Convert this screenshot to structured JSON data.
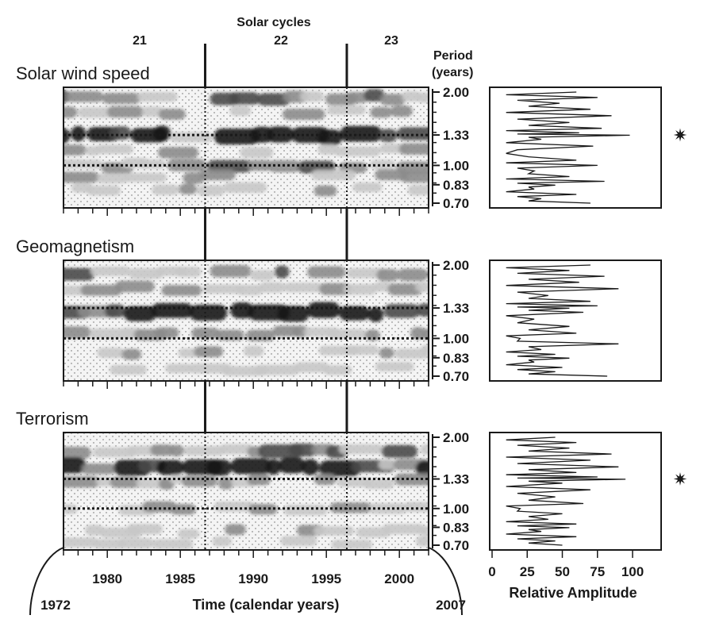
{
  "header": {
    "title": "Solar cycles",
    "cycles": [
      "21",
      "22",
      "23"
    ],
    "period_label_line1": "Period",
    "period_label_line2": "(years)"
  },
  "marker_symbol": "✷",
  "x_axis": {
    "label": "Time (calendar years)",
    "start_label": "1972",
    "end_label": "2007",
    "tick_labels": [
      "1980",
      "1985",
      "1990",
      "1995",
      "2000"
    ],
    "range": [
      1977,
      2002
    ]
  },
  "amp_axis": {
    "label": "Relative Amplitude",
    "tick_labels": [
      "0",
      "25",
      "50",
      "75",
      "100"
    ],
    "range": [
      0,
      100
    ]
  },
  "cycle_boundaries": [
    1986.7,
    1996.4
  ],
  "colors": {
    "ink": "#1a1a1a",
    "light": "#c8c8c8",
    "mid": "#8c8c8c",
    "dark": "#4a4a4a",
    "darkest": "#151515",
    "bg": "#f4f4f4"
  },
  "chart_data": [
    {
      "type": "heatmap",
      "title": "Solar wind speed",
      "ylabel": "Period (years)",
      "y_ticks": [
        "2.00",
        "1.33",
        "1.00",
        "0.83",
        "0.70"
      ],
      "y_values": [
        2.0,
        1.333,
        1.0,
        0.833,
        0.7
      ],
      "reference_periods": [
        1.333,
        1.0
      ],
      "starred_period": 1.333,
      "bands": [
        {
          "period": 1.9,
          "strength": 0.55
        },
        {
          "period": 1.65,
          "strength": 0.45
        },
        {
          "period": 1.33,
          "strength": 0.85,
          "peak": [
            1989,
            1994
          ]
        },
        {
          "period": 1.15,
          "strength": 0.45
        },
        {
          "period": 1.0,
          "strength": 0.6
        },
        {
          "period": 0.9,
          "strength": 0.45
        },
        {
          "period": 0.8,
          "strength": 0.4
        }
      ],
      "spectrum_type": "line",
      "spectrum_period": [
        2.0,
        1.9,
        1.8,
        1.7,
        1.6,
        1.5,
        1.42,
        1.36,
        1.33,
        1.28,
        1.2,
        1.12,
        1.05,
        1.0,
        0.95,
        0.9,
        0.86,
        0.83,
        0.8,
        0.76,
        0.73,
        0.7
      ],
      "spectrum_amplitude": [
        60,
        75,
        48,
        70,
        85,
        55,
        78,
        62,
        98,
        35,
        72,
        10,
        60,
        75,
        30,
        55,
        80,
        45,
        30,
        60,
        35,
        70
      ]
    },
    {
      "type": "heatmap",
      "title": "Geomagnetism",
      "ylabel": "Period (years)",
      "y_ticks": [
        "2.00",
        "1.33",
        "1.00",
        "0.83",
        "0.70"
      ],
      "y_values": [
        2.0,
        1.333,
        1.0,
        0.833,
        0.7
      ],
      "reference_periods": [
        1.333,
        1.0
      ],
      "bands": [
        {
          "period": 1.85,
          "strength": 0.55
        },
        {
          "period": 1.6,
          "strength": 0.5
        },
        {
          "period": 1.28,
          "strength": 0.9,
          "peak": [
            1988,
            1995
          ]
        },
        {
          "period": 1.05,
          "strength": 0.5
        },
        {
          "period": 0.88,
          "strength": 0.4
        },
        {
          "period": 0.75,
          "strength": 0.35
        }
      ],
      "spectrum_type": "line",
      "spectrum_period": [
        2.0,
        1.9,
        1.8,
        1.7,
        1.6,
        1.5,
        1.42,
        1.36,
        1.33,
        1.28,
        1.2,
        1.12,
        1.05,
        1.0,
        0.95,
        0.9,
        0.86,
        0.83,
        0.8,
        0.76,
        0.73,
        0.7
      ],
      "spectrum_amplitude": [
        70,
        55,
        80,
        62,
        90,
        40,
        70,
        75,
        55,
        65,
        30,
        55,
        60,
        20,
        90,
        35,
        45,
        55,
        30,
        50,
        45,
        82
      ]
    },
    {
      "type": "heatmap",
      "title": "Terrorism",
      "ylabel": "Period (years)",
      "y_ticks": [
        "2.00",
        "1.33",
        "1.00",
        "0.83",
        "0.70"
      ],
      "y_values": [
        2.0,
        1.333,
        1.0,
        0.833,
        0.7
      ],
      "reference_periods": [
        1.333,
        1.0
      ],
      "starred_period": 1.333,
      "bands": [
        {
          "period": 1.75,
          "strength": 0.7
        },
        {
          "period": 1.5,
          "strength": 0.85,
          "peak": [
            1987,
            1996
          ]
        },
        {
          "period": 1.3,
          "strength": 0.55
        },
        {
          "period": 1.0,
          "strength": 0.45
        },
        {
          "period": 0.8,
          "strength": 0.4
        },
        {
          "period": 0.72,
          "strength": 0.35
        }
      ],
      "spectrum_type": "line",
      "spectrum_period": [
        2.0,
        1.9,
        1.8,
        1.7,
        1.6,
        1.5,
        1.42,
        1.36,
        1.33,
        1.28,
        1.2,
        1.12,
        1.05,
        1.0,
        0.95,
        0.9,
        0.86,
        0.83,
        0.8,
        0.76,
        0.73,
        0.7
      ],
      "spectrum_amplitude": [
        45,
        60,
        55,
        85,
        70,
        90,
        60,
        75,
        95,
        50,
        70,
        45,
        65,
        20,
        50,
        40,
        60,
        55,
        35,
        60,
        45,
        50
      ]
    }
  ]
}
